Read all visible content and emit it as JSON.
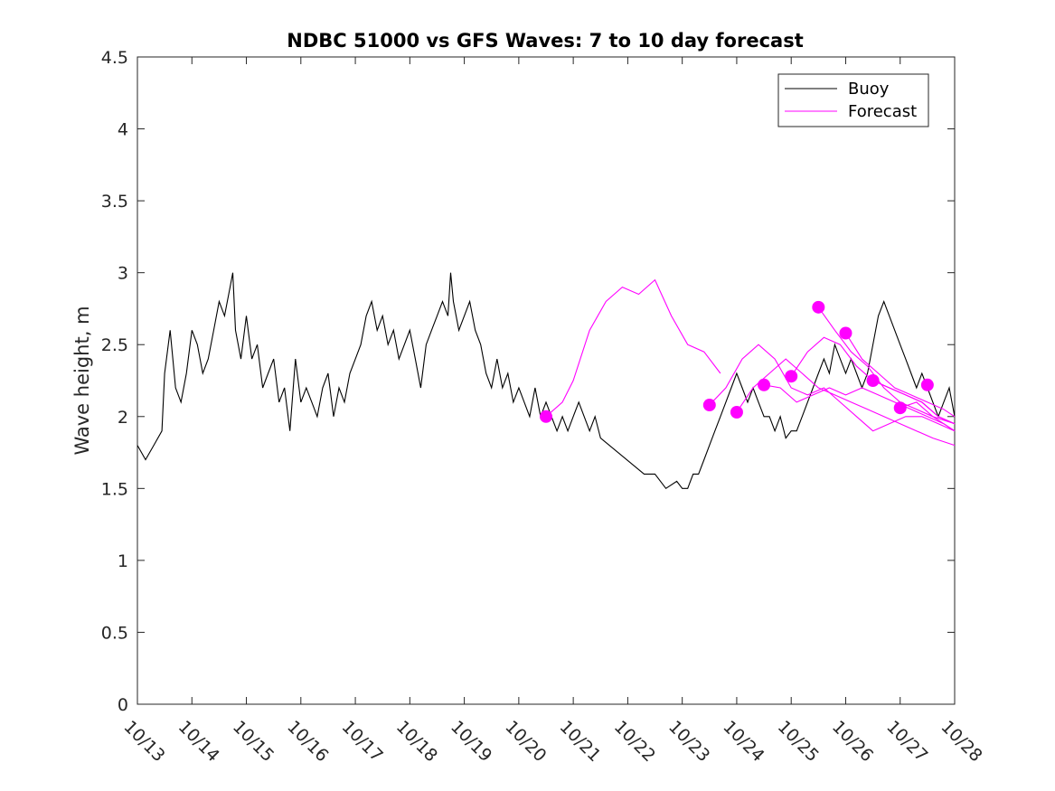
{
  "chart_data": {
    "type": "line",
    "title": "NDBC 51000 vs GFS Waves: 7 to 10 day forecast",
    "xlabel": "",
    "ylabel": "Wave height, m",
    "x_tick_labels": [
      "10/13",
      "10/14",
      "10/15",
      "10/16",
      "10/17",
      "10/18",
      "10/19",
      "10/20",
      "10/21",
      "10/22",
      "10/23",
      "10/24",
      "10/25",
      "10/26",
      "10/27",
      "10/28"
    ],
    "xlim": [
      0,
      15
    ],
    "ylim": [
      0,
      4.5
    ],
    "y_ticks": [
      "0",
      "0.5",
      "1",
      "1.5",
      "2",
      "2.5",
      "3",
      "3.5",
      "4",
      "4.5"
    ],
    "legend": {
      "location": "top-right",
      "entries": [
        {
          "name": "Buoy",
          "color": "#000000"
        },
        {
          "name": "Forecast",
          "color": "#ff00ff"
        }
      ]
    },
    "colors": {
      "buoy": "#000000",
      "forecast": "#ff00ff",
      "axis": "#262626"
    },
    "series": [
      {
        "name": "Buoy",
        "x_unit": "days since 10/13",
        "points": [
          [
            0,
            1.8
          ],
          [
            0.15,
            1.7
          ],
          [
            0.3,
            1.8
          ],
          [
            0.45,
            1.9
          ],
          [
            0.5,
            2.3
          ],
          [
            0.6,
            2.6
          ],
          [
            0.7,
            2.2
          ],
          [
            0.8,
            2.1
          ],
          [
            0.9,
            2.3
          ],
          [
            1.0,
            2.6
          ],
          [
            1.1,
            2.5
          ],
          [
            1.2,
            2.3
          ],
          [
            1.3,
            2.4
          ],
          [
            1.4,
            2.6
          ],
          [
            1.5,
            2.8
          ],
          [
            1.6,
            2.7
          ],
          [
            1.7,
            2.9
          ],
          [
            1.75,
            3.0
          ],
          [
            1.8,
            2.6
          ],
          [
            1.9,
            2.4
          ],
          [
            2.0,
            2.7
          ],
          [
            2.1,
            2.4
          ],
          [
            2.2,
            2.5
          ],
          [
            2.3,
            2.2
          ],
          [
            2.4,
            2.3
          ],
          [
            2.5,
            2.4
          ],
          [
            2.6,
            2.1
          ],
          [
            2.7,
            2.2
          ],
          [
            2.8,
            1.9
          ],
          [
            2.9,
            2.4
          ],
          [
            3.0,
            2.1
          ],
          [
            3.1,
            2.2
          ],
          [
            3.2,
            2.1
          ],
          [
            3.3,
            2.0
          ],
          [
            3.4,
            2.2
          ],
          [
            3.5,
            2.3
          ],
          [
            3.6,
            2.0
          ],
          [
            3.7,
            2.2
          ],
          [
            3.8,
            2.1
          ],
          [
            3.9,
            2.3
          ],
          [
            4.0,
            2.4
          ],
          [
            4.1,
            2.5
          ],
          [
            4.2,
            2.7
          ],
          [
            4.3,
            2.8
          ],
          [
            4.4,
            2.6
          ],
          [
            4.5,
            2.7
          ],
          [
            4.6,
            2.5
          ],
          [
            4.7,
            2.6
          ],
          [
            4.8,
            2.4
          ],
          [
            4.9,
            2.5
          ],
          [
            5.0,
            2.6
          ],
          [
            5.1,
            2.4
          ],
          [
            5.2,
            2.2
          ],
          [
            5.3,
            2.5
          ],
          [
            5.4,
            2.6
          ],
          [
            5.5,
            2.7
          ],
          [
            5.6,
            2.8
          ],
          [
            5.7,
            2.7
          ],
          [
            5.75,
            3.0
          ],
          [
            5.8,
            2.8
          ],
          [
            5.9,
            2.6
          ],
          [
            6.0,
            2.7
          ],
          [
            6.1,
            2.8
          ],
          [
            6.2,
            2.6
          ],
          [
            6.3,
            2.5
          ],
          [
            6.4,
            2.3
          ],
          [
            6.5,
            2.2
          ],
          [
            6.6,
            2.4
          ],
          [
            6.7,
            2.2
          ],
          [
            6.8,
            2.3
          ],
          [
            6.9,
            2.1
          ],
          [
            7.0,
            2.2
          ],
          [
            7.1,
            2.1
          ],
          [
            7.2,
            2.0
          ],
          [
            7.3,
            2.2
          ],
          [
            7.4,
            2.0
          ],
          [
            7.5,
            2.1
          ],
          [
            7.6,
            2.0
          ],
          [
            7.7,
            1.9
          ],
          [
            7.8,
            2.0
          ],
          [
            7.9,
            1.9
          ],
          [
            8.0,
            2.0
          ],
          [
            8.1,
            2.1
          ],
          [
            8.2,
            2.0
          ],
          [
            8.3,
            1.9
          ],
          [
            8.4,
            2.0
          ],
          [
            8.5,
            1.85
          ],
          [
            9.3,
            1.6
          ],
          [
            9.5,
            1.6
          ],
          [
            9.7,
            1.5
          ],
          [
            9.9,
            1.55
          ],
          [
            10.0,
            1.5
          ],
          [
            10.1,
            1.5
          ],
          [
            10.2,
            1.6
          ],
          [
            10.3,
            1.6
          ],
          [
            10.4,
            1.7
          ],
          [
            10.5,
            1.8
          ],
          [
            10.6,
            1.9
          ],
          [
            10.7,
            2.0
          ],
          [
            10.8,
            2.1
          ],
          [
            10.9,
            2.2
          ],
          [
            11.0,
            2.3
          ],
          [
            11.1,
            2.2
          ],
          [
            11.2,
            2.1
          ],
          [
            11.3,
            2.2
          ],
          [
            11.4,
            2.1
          ],
          [
            11.5,
            2.0
          ],
          [
            11.6,
            2.0
          ],
          [
            11.7,
            1.9
          ],
          [
            11.8,
            2.0
          ],
          [
            11.9,
            1.85
          ],
          [
            12.0,
            1.9
          ],
          [
            12.1,
            1.9
          ],
          [
            12.2,
            2.0
          ],
          [
            12.3,
            2.1
          ],
          [
            12.4,
            2.2
          ],
          [
            12.5,
            2.3
          ],
          [
            12.6,
            2.4
          ],
          [
            12.7,
            2.3
          ],
          [
            12.8,
            2.5
          ],
          [
            12.9,
            2.4
          ],
          [
            13.0,
            2.3
          ],
          [
            13.1,
            2.4
          ],
          [
            13.2,
            2.3
          ],
          [
            13.3,
            2.2
          ],
          [
            13.4,
            2.3
          ],
          [
            13.5,
            2.5
          ],
          [
            13.6,
            2.7
          ],
          [
            13.7,
            2.8
          ],
          [
            13.8,
            2.7
          ],
          [
            13.9,
            2.6
          ],
          [
            14.0,
            2.5
          ],
          [
            14.1,
            2.4
          ],
          [
            14.2,
            2.3
          ],
          [
            14.3,
            2.2
          ],
          [
            14.4,
            2.3
          ],
          [
            14.5,
            2.2
          ],
          [
            14.6,
            2.1
          ],
          [
            14.7,
            2.0
          ],
          [
            14.8,
            2.1
          ],
          [
            14.9,
            2.2
          ],
          [
            15.0,
            2.0
          ]
        ]
      },
      {
        "name": "Forecast",
        "runs": [
          {
            "start": [
              7.5,
              2.0
            ],
            "points": [
              [
                7.5,
                2.0
              ],
              [
                7.8,
                2.1
              ],
              [
                8.0,
                2.25
              ],
              [
                8.3,
                2.6
              ],
              [
                8.6,
                2.8
              ],
              [
                8.9,
                2.9
              ],
              [
                9.2,
                2.85
              ],
              [
                9.5,
                2.95
              ],
              [
                9.8,
                2.7
              ],
              [
                10.1,
                2.5
              ],
              [
                10.4,
                2.45
              ],
              [
                10.7,
                2.3
              ]
            ]
          },
          {
            "start": [
              10.5,
              2.08
            ],
            "points": [
              [
                10.5,
                2.08
              ],
              [
                10.8,
                2.2
              ],
              [
                11.1,
                2.4
              ],
              [
                11.4,
                2.5
              ],
              [
                11.7,
                2.4
              ],
              [
                12.0,
                2.2
              ],
              [
                12.3,
                2.15
              ],
              [
                12.6,
                2.2
              ],
              [
                12.9,
                2.1
              ],
              [
                13.2,
                2.0
              ],
              [
                13.5,
                1.9
              ],
              [
                13.8,
                1.95
              ],
              [
                14.1,
                2.0
              ],
              [
                14.4,
                2.0
              ],
              [
                14.7,
                1.95
              ],
              [
                15.0,
                1.9
              ]
            ]
          },
          {
            "start": [
              11.0,
              2.03
            ],
            "points": [
              [
                11.0,
                2.03
              ],
              [
                11.3,
                2.2
              ],
              [
                11.6,
                2.3
              ],
              [
                11.9,
                2.4
              ],
              [
                12.2,
                2.3
              ],
              [
                12.5,
                2.2
              ],
              [
                12.8,
                2.15
              ],
              [
                13.1,
                2.1
              ],
              [
                13.4,
                2.05
              ],
              [
                13.7,
                2.0
              ],
              [
                14.0,
                1.95
              ],
              [
                14.3,
                1.9
              ],
              [
                14.6,
                1.85
              ],
              [
                15.0,
                1.8
              ]
            ]
          },
          {
            "start": [
              11.5,
              2.22
            ],
            "points": [
              [
                11.5,
                2.22
              ],
              [
                11.8,
                2.2
              ],
              [
                12.1,
                2.1
              ],
              [
                12.4,
                2.15
              ],
              [
                12.7,
                2.2
              ],
              [
                13.0,
                2.15
              ],
              [
                13.3,
                2.2
              ],
              [
                13.6,
                2.15
              ],
              [
                13.9,
                2.1
              ],
              [
                14.2,
                2.05
              ],
              [
                14.5,
                2.0
              ],
              [
                14.8,
                1.95
              ],
              [
                15.0,
                1.9
              ]
            ]
          },
          {
            "start": [
              12.0,
              2.28
            ],
            "points": [
              [
                12.0,
                2.28
              ],
              [
                12.3,
                2.45
              ],
              [
                12.6,
                2.55
              ],
              [
                12.9,
                2.5
              ],
              [
                13.2,
                2.35
              ],
              [
                13.5,
                2.25
              ],
              [
                13.8,
                2.2
              ],
              [
                14.1,
                2.15
              ],
              [
                14.4,
                2.1
              ],
              [
                14.7,
                2.0
              ],
              [
                15.0,
                1.95
              ]
            ]
          },
          {
            "start": [
              12.5,
              2.76
            ],
            "points": [
              [
                12.5,
                2.76
              ],
              [
                12.8,
                2.6
              ],
              [
                13.1,
                2.45
              ],
              [
                13.4,
                2.35
              ],
              [
                13.7,
                2.2
              ],
              [
                14.0,
                2.1
              ],
              [
                14.3,
                2.05
              ],
              [
                14.6,
                2.0
              ],
              [
                15.0,
                1.95
              ]
            ]
          },
          {
            "start": [
              13.0,
              2.58
            ],
            "points": [
              [
                13.0,
                2.58
              ],
              [
                13.3,
                2.4
              ],
              [
                13.6,
                2.3
              ],
              [
                13.9,
                2.2
              ],
              [
                14.2,
                2.15
              ],
              [
                14.5,
                2.1
              ],
              [
                14.8,
                2.05
              ],
              [
                15.0,
                2.0
              ]
            ]
          },
          {
            "start": [
              13.5,
              2.25
            ],
            "points": [
              [
                13.5,
                2.25
              ],
              [
                13.8,
                2.2
              ],
              [
                14.1,
                2.15
              ],
              [
                14.4,
                2.1
              ],
              [
                14.7,
                2.0
              ],
              [
                15.0,
                1.95
              ]
            ]
          },
          {
            "start": [
              14.0,
              2.06
            ],
            "points": [
              [
                14.0,
                2.06
              ],
              [
                14.3,
                2.1
              ],
              [
                14.6,
                2.0
              ],
              [
                15.0,
                1.9
              ]
            ]
          },
          {
            "start": [
              14.5,
              2.22
            ],
            "points": []
          }
        ]
      }
    ]
  }
}
